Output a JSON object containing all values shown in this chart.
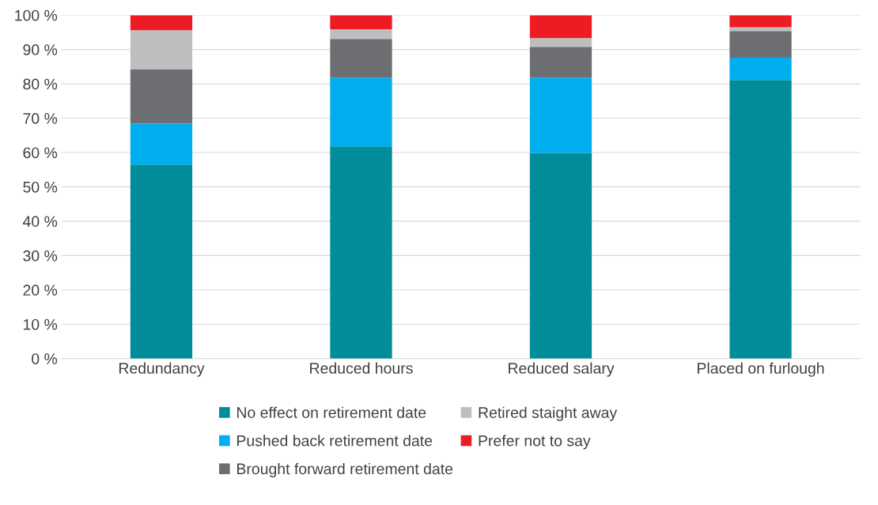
{
  "chart_data": {
    "type": "bar",
    "stacked": true,
    "categories": [
      "Redundancy",
      "Reduced hours",
      "Reduced salary",
      "Placed on furlough"
    ],
    "series": [
      {
        "name": "No effect on retirement date",
        "color": "#008c99",
        "values": [
          56.5,
          61.8,
          59.9,
          81.1
        ]
      },
      {
        "name": "Pushed back retirement date",
        "color": "#00aeef",
        "values": [
          11.9,
          20.0,
          21.9,
          6.5
        ]
      },
      {
        "name": "Brought forward retirement date",
        "color": "#6d6e71",
        "values": [
          15.9,
          11.3,
          9.0,
          7.8
        ]
      },
      {
        "name": "Retired staight away",
        "color": "#bcbec0",
        "values": [
          11.3,
          2.8,
          2.5,
          1.1
        ]
      },
      {
        "name": "Prefer not to say",
        "color": "#ed1c24",
        "values": [
          4.4,
          4.1,
          6.7,
          3.5
        ]
      }
    ],
    "ylim": [
      0,
      100
    ],
    "yticks": [
      {
        "value": 0,
        "label": "0 %"
      },
      {
        "value": 10,
        "label": "10 %"
      },
      {
        "value": 20,
        "label": "20 %"
      },
      {
        "value": 30,
        "label": "30 %"
      },
      {
        "value": 40,
        "label": "40 %"
      },
      {
        "value": 50,
        "label": "50 %"
      },
      {
        "value": 60,
        "label": "60 %"
      },
      {
        "value": 70,
        "label": "70 %"
      },
      {
        "value": 80,
        "label": "80 %"
      },
      {
        "value": 90,
        "label": "90 %"
      },
      {
        "value": 100,
        "label": "100 %"
      }
    ],
    "grid": "y",
    "legend": "bottom"
  }
}
